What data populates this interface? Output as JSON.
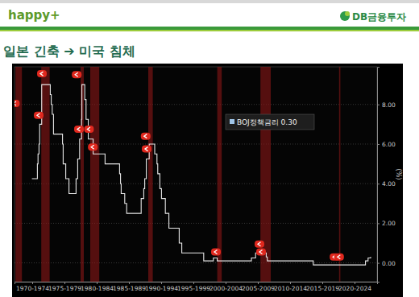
{
  "header": {
    "brand": "happy+",
    "company": "DB금융투자"
  },
  "chart_data": {
    "type": "line",
    "title": "일본 긴축 ➔ 미국 침체",
    "y_label": "(%)",
    "xlim": [
      1969.75,
      2026
    ],
    "xticks": [
      {
        "value": 1972.5,
        "label": "1970-1974"
      },
      {
        "value": 1977.5,
        "label": "1975-1979"
      },
      {
        "value": 1982.5,
        "label": "1980-1984"
      },
      {
        "value": 1987.5,
        "label": "1985-1989"
      },
      {
        "value": 1992.5,
        "label": "1990-1994"
      },
      {
        "value": 1997.5,
        "label": "1995-1999"
      },
      {
        "value": 2002.5,
        "label": "2000-2004"
      },
      {
        "value": 2007.5,
        "label": "2005-2009"
      },
      {
        "value": 2012.5,
        "label": "2010-2014"
      },
      {
        "value": 2017.5,
        "label": "2015-2019"
      },
      {
        "value": 2022.5,
        "label": "2020-2024"
      }
    ],
    "ylim": [
      -0.95,
      9.9
    ],
    "yticks": [
      {
        "value": 0,
        "label": "0.00"
      },
      {
        "value": 2,
        "label": "2.00"
      },
      {
        "value": 4,
        "label": "4.00"
      },
      {
        "value": 6,
        "label": "6.00"
      },
      {
        "value": 8,
        "label": "8.00"
      }
    ],
    "grid": true,
    "legend": "top",
    "shaded_ranges": [
      [
        1969.9,
        1970.9
      ],
      [
        1973.9,
        1975.2
      ],
      [
        1980.0,
        1980.5
      ],
      [
        1981.5,
        1982.9
      ],
      [
        1990.5,
        1991.2
      ],
      [
        2001.2,
        2001.9
      ],
      [
        2007.9,
        2009.5
      ],
      [
        2020.1,
        2020.3
      ]
    ],
    "series": [
      {
        "name": "BOJ정책금리 0.30",
        "color": "#e8e8e8",
        "line_style": "step",
        "x": [
          1972.45,
          1973.3,
          1973.4,
          1973.55,
          1973.65,
          1973.97,
          1975.3,
          1975.45,
          1975.6,
          1975.8,
          1977.2,
          1977.3,
          1977.7,
          1978.2,
          1979.3,
          1979.55,
          1979.85,
          1980.15,
          1980.2,
          1980.65,
          1980.85,
          1981.2,
          1981.95,
          1983.8,
          1986.05,
          1986.2,
          1986.3,
          1986.85,
          1987.15,
          1989.4,
          1989.8,
          1989.95,
          1990.2,
          1990.65,
          1991.5,
          1991.85,
          1991.97,
          1992.3,
          1992.55,
          1993.15,
          1993.7,
          1995.3,
          1995.7,
          1999.1,
          2000.6,
          2001.2,
          2006.5,
          2007.15,
          2008.8,
          2008.97,
          2016.1,
          2024.2,
          2024.6,
          2025.0
        ],
        "values": [
          4.25,
          5.0,
          5.5,
          6.0,
          7.0,
          9.0,
          8.5,
          8.0,
          7.5,
          6.5,
          6.0,
          5.0,
          4.25,
          3.5,
          4.25,
          5.25,
          6.25,
          7.25,
          9.0,
          8.25,
          7.25,
          6.25,
          5.5,
          5.0,
          4.5,
          4.0,
          3.5,
          3.0,
          2.5,
          3.25,
          3.75,
          4.25,
          5.25,
          6.0,
          5.5,
          5.0,
          4.5,
          3.75,
          3.25,
          2.5,
          1.75,
          1.0,
          0.5,
          0.1,
          0.25,
          0.1,
          0.25,
          0.5,
          0.3,
          0.1,
          -0.1,
          0.1,
          0.25,
          0.3
        ]
      },
      {
        "type": "scatter",
        "marker": "arrow",
        "color": "#e0281e",
        "x": [
          1969.8,
          1974.0,
          1973.5,
          1979.4,
          1979.75,
          1981.3,
          1981.9,
          1990.1,
          1990.25,
          2001.0,
          2007.75,
          2008.0,
          2019.4,
          2020.1
        ],
        "values": [
          8.05,
          9.55,
          7.45,
          9.5,
          6.75,
          6.75,
          5.85,
          6.4,
          5.75,
          0.55,
          0.95,
          0.55,
          0.3,
          0.3
        ]
      }
    ]
  }
}
